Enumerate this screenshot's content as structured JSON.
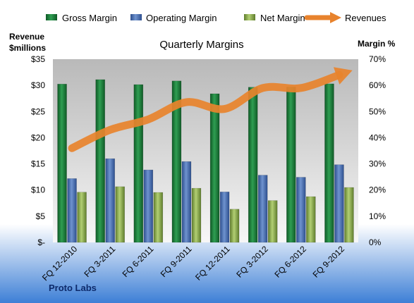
{
  "chart_data": {
    "type": "bar",
    "title": "Quarterly Margins",
    "left_axis_label_line1": "Revenue",
    "left_axis_label_line2": "$millions",
    "right_axis_label": "Margin %",
    "left_ylim": [
      0,
      35
    ],
    "right_ylim": [
      0,
      70
    ],
    "left_ticks": [
      "$-",
      "$5",
      "$10",
      "$15",
      "$20",
      "$25",
      "$30",
      "$35"
    ],
    "right_ticks": [
      "0%",
      "10%",
      "20%",
      "30%",
      "40%",
      "50%",
      "60%",
      "70%"
    ],
    "categories": [
      "FQ 12-2010",
      "FQ 3-2011",
      "FQ 6-2011",
      "FQ 9-2011",
      "FQ 12-2011",
      "FQ 3-2012",
      "FQ 6-2012",
      "FQ 9-2012"
    ],
    "series": [
      {
        "name": "Gross Margin",
        "axis": "right",
        "color": "#1e7a3a",
        "values": [
          60.5,
          62.2,
          60.3,
          61.7,
          56.8,
          59.3,
          59.4,
          60.6
        ]
      },
      {
        "name": "Operating Margin",
        "axis": "right",
        "color": "#4a6fb0",
        "values": [
          24.4,
          32.0,
          27.7,
          30.9,
          19.3,
          25.7,
          24.9,
          29.7
        ]
      },
      {
        "name": "Net Margin",
        "axis": "right",
        "color": "#8fb04e",
        "values": [
          19.2,
          21.3,
          19.1,
          20.7,
          12.7,
          16.0,
          17.5,
          21.0
        ]
      },
      {
        "name": "Revenues",
        "axis": "left",
        "type": "line",
        "color": "#e8832d",
        "values": [
          18,
          21.5,
          23.5,
          26.8,
          25.5,
          29.5,
          29.5,
          32
        ]
      }
    ],
    "legend_position": "top",
    "grid": false,
    "footer": "Proto Labs"
  }
}
